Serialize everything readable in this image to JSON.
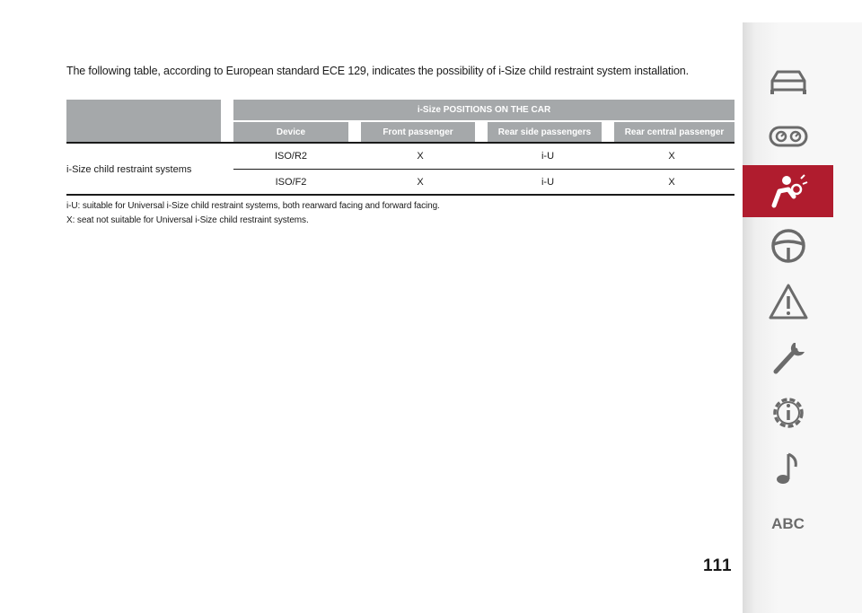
{
  "intro_text": "The following table, according to European standard ECE 129, indicates the possibility of i-Size child restraint system installation.",
  "table": {
    "group_header": "i-Size POSITIONS ON THE CAR",
    "columns": [
      "Device",
      "Front passenger",
      "Rear side passengers",
      "Rear central passenger"
    ],
    "row_label": "i-Size child restraint systems",
    "rows": [
      {
        "device": "ISO/R2",
        "front": "X",
        "rear_side": "i-U",
        "rear_central": "X"
      },
      {
        "device": "ISO/F2",
        "front": "X",
        "rear_side": "i-U",
        "rear_central": "X"
      }
    ]
  },
  "notes": [
    "i-U: suitable for Universal i-Size child restraint systems, both rearward facing and forward facing.",
    "X: seat not suitable for Universal i-Size child restraint systems."
  ],
  "page_number": "111",
  "sidebar": {
    "tabs": [
      {
        "icon": "car-icon",
        "active": false
      },
      {
        "icon": "dashboard-icon",
        "active": false
      },
      {
        "icon": "airbag-safety-icon",
        "active": true
      },
      {
        "icon": "steering-wheel-icon",
        "active": false
      },
      {
        "icon": "warning-triangle-icon",
        "active": false
      },
      {
        "icon": "wrench-icon",
        "active": false
      },
      {
        "icon": "gear-info-icon",
        "active": false
      },
      {
        "icon": "music-note-icon",
        "active": false
      },
      {
        "icon": "abc-index-icon",
        "active": false,
        "label": "ABC"
      }
    ],
    "active_color": "#b01c2e",
    "icon_color": "#6b6b6b"
  },
  "colors": {
    "header_bg": "#a5a8aa",
    "header_text": "#ffffff"
  }
}
